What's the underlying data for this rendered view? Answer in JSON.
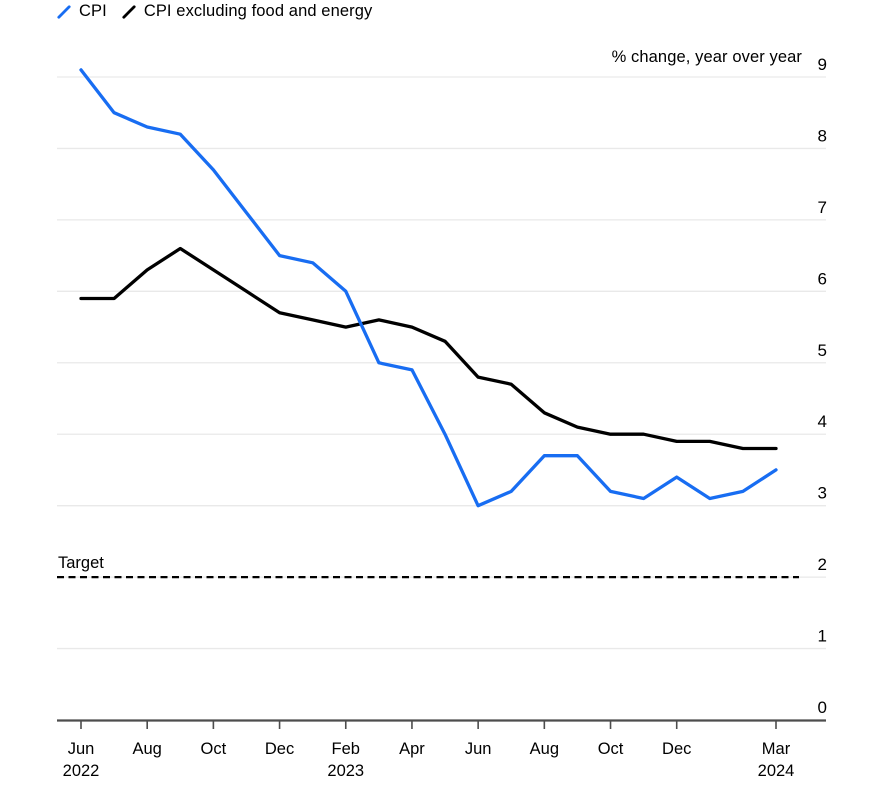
{
  "legend": {
    "items": [
      {
        "label": "CPI",
        "color": "#186df2"
      },
      {
        "label": "CPI excluding food and energy",
        "color": "#000000"
      }
    ]
  },
  "axis_title": "% change, year over year",
  "target_label": "Target",
  "colors": {
    "cpi_line": "#186df2",
    "core_cpi_line": "#000000",
    "gridline": "#e9e9e9",
    "axis": "#4d4d4d",
    "target_line": "#000000",
    "tick_text": "#000000",
    "background": "#ffffff"
  },
  "chart_data": {
    "type": "line",
    "title": "",
    "ylabel": "% change, year over year",
    "ylim": [
      0,
      9
    ],
    "yticks": [
      0,
      1,
      2,
      3,
      4,
      5,
      6,
      7,
      8,
      9
    ],
    "y_axis_side": "right",
    "grid": "horizontal",
    "legend_position": "top-left",
    "x": [
      "Jun 2022",
      "Jul 2022",
      "Aug 2022",
      "Sep 2022",
      "Oct 2022",
      "Nov 2022",
      "Dec 2022",
      "Jan 2023",
      "Feb 2023",
      "Mar 2023",
      "Apr 2023",
      "May 2023",
      "Jun 2023",
      "Jul 2023",
      "Aug 2023",
      "Sep 2023",
      "Oct 2023",
      "Nov 2023",
      "Dec 2023",
      "Jan 2024",
      "Feb 2024",
      "Mar 2024"
    ],
    "xticks": [
      {
        "month_index": 0,
        "label": "Jun",
        "year": "2022"
      },
      {
        "month_index": 2,
        "label": "Aug",
        "year": ""
      },
      {
        "month_index": 4,
        "label": "Oct",
        "year": ""
      },
      {
        "month_index": 6,
        "label": "Dec",
        "year": ""
      },
      {
        "month_index": 8,
        "label": "Feb",
        "year": "2023"
      },
      {
        "month_index": 10,
        "label": "Apr",
        "year": ""
      },
      {
        "month_index": 12,
        "label": "Jun",
        "year": ""
      },
      {
        "month_index": 14,
        "label": "Aug",
        "year": ""
      },
      {
        "month_index": 16,
        "label": "Oct",
        "year": ""
      },
      {
        "month_index": 18,
        "label": "Dec",
        "year": ""
      },
      {
        "month_index": 21,
        "label": "Mar",
        "year": "2024"
      }
    ],
    "series": [
      {
        "name": "CPI",
        "color": "#186df2",
        "values": [
          9.1,
          8.5,
          8.3,
          8.2,
          7.7,
          7.1,
          6.5,
          6.4,
          6.0,
          5.0,
          4.9,
          4.0,
          3.0,
          3.2,
          3.7,
          3.7,
          3.2,
          3.1,
          3.4,
          3.1,
          3.2,
          3.5
        ]
      },
      {
        "name": "CPI excluding food and energy",
        "color": "#000000",
        "values": [
          5.9,
          5.9,
          6.3,
          6.6,
          6.3,
          6.0,
          5.7,
          5.6,
          5.5,
          5.6,
          5.5,
          5.3,
          4.8,
          4.7,
          4.3,
          4.1,
          4.0,
          4.0,
          3.9,
          3.9,
          3.8,
          3.8
        ]
      }
    ],
    "target_line": {
      "label": "Target",
      "value": 2
    }
  }
}
